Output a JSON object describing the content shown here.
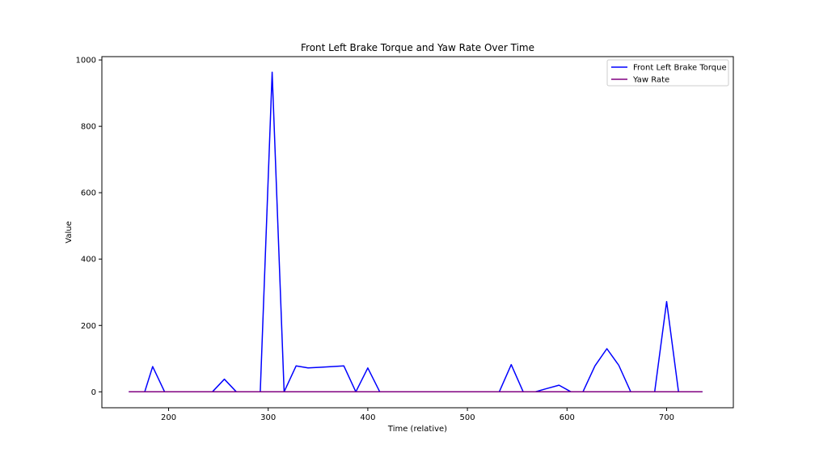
{
  "chart_data": {
    "type": "line",
    "title": "Front Left Brake Torque and Yaw Rate Over Time",
    "xlabel": "Time (relative)",
    "ylabel": "Value",
    "xlim": [
      133,
      767
    ],
    "ylim": [
      -48,
      1010
    ],
    "xticks": [
      200,
      300,
      400,
      500,
      600,
      700
    ],
    "yticks": [
      0,
      200,
      400,
      600,
      800,
      1000
    ],
    "grid": false,
    "legend_position": "top-right",
    "series": [
      {
        "name": "Front Left Brake Torque",
        "color": "#0000ff",
        "x": [
          160,
          176,
          184,
          196,
          208,
          220,
          232,
          244,
          256,
          268,
          280,
          292,
          304,
          316,
          328,
          340,
          352,
          364,
          376,
          388,
          400,
          412,
          424,
          436,
          448,
          460,
          472,
          484,
          496,
          508,
          520,
          532,
          544,
          556,
          568,
          580,
          592,
          604,
          616,
          628,
          640,
          652,
          664,
          676,
          688,
          700,
          712,
          724,
          736
        ],
        "y": [
          0,
          0,
          76,
          0,
          0,
          0,
          0,
          0,
          38,
          0,
          0,
          0,
          963,
          0,
          78,
          72,
          74,
          76,
          78,
          0,
          72,
          0,
          0,
          0,
          0,
          0,
          0,
          0,
          0,
          0,
          0,
          0,
          82,
          0,
          0,
          10,
          20,
          0,
          0,
          78,
          130,
          80,
          0,
          0,
          0,
          272,
          0,
          0,
          0
        ]
      },
      {
        "name": "Yaw Rate",
        "color": "#800080",
        "x": [
          160,
          736
        ],
        "y": [
          0,
          0
        ]
      }
    ]
  }
}
